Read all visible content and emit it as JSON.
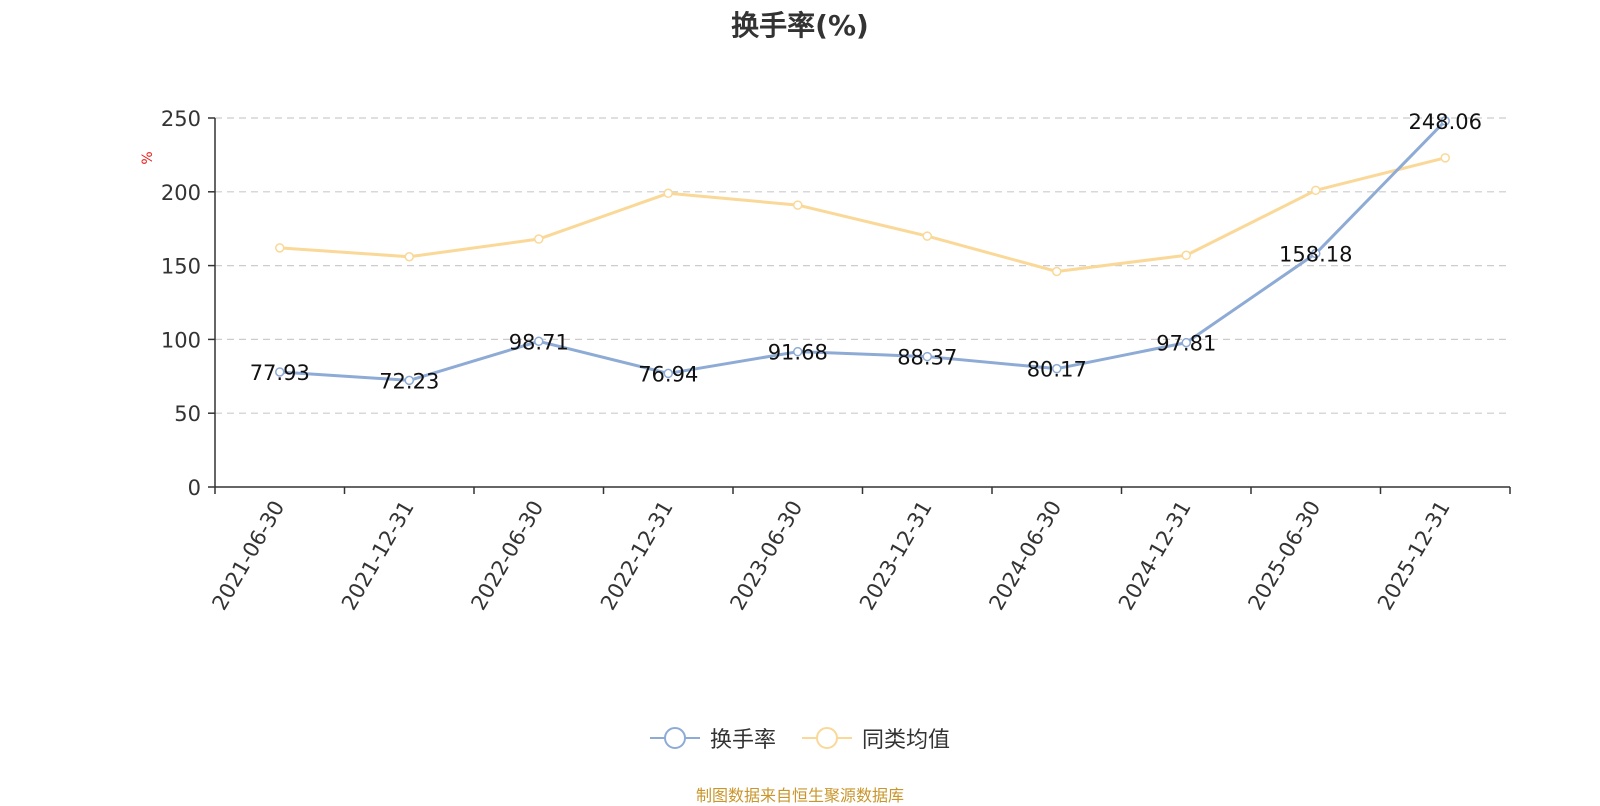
{
  "chart_data": {
    "type": "line",
    "title": "换手率(%)",
    "ylabel": "%",
    "xlabel": "",
    "ylim": [
      0,
      250
    ],
    "yticks": [
      0,
      50,
      100,
      150,
      200,
      250
    ],
    "grid": true,
    "legend_position": "bottom-center",
    "categories": [
      "2021-06-30",
      "2021-12-31",
      "2022-06-30",
      "2022-12-31",
      "2023-06-30",
      "2023-12-31",
      "2024-06-30",
      "2024-12-31",
      "2025-06-30",
      "2025-12-31"
    ],
    "series": [
      {
        "name": "换手率",
        "color": "#8eabd6",
        "values": [
          77.93,
          72.23,
          98.71,
          76.94,
          91.68,
          88.37,
          80.17,
          97.81,
          158.18,
          248.06
        ],
        "labels": [
          "77.93",
          "72.23",
          "98.71",
          "76.94",
          "91.68",
          "88.37",
          "80.17",
          "97.81",
          "158.18",
          "248.06"
        ]
      },
      {
        "name": "同类均值",
        "color": "#fad898",
        "values": [
          162,
          156,
          168,
          199,
          191,
          170,
          146,
          157,
          201,
          223
        ]
      }
    ],
    "source": "制图数据来自恒生聚源数据库"
  },
  "colors": {
    "unit_label": "#e8211b",
    "source_text": "#c9962c"
  }
}
